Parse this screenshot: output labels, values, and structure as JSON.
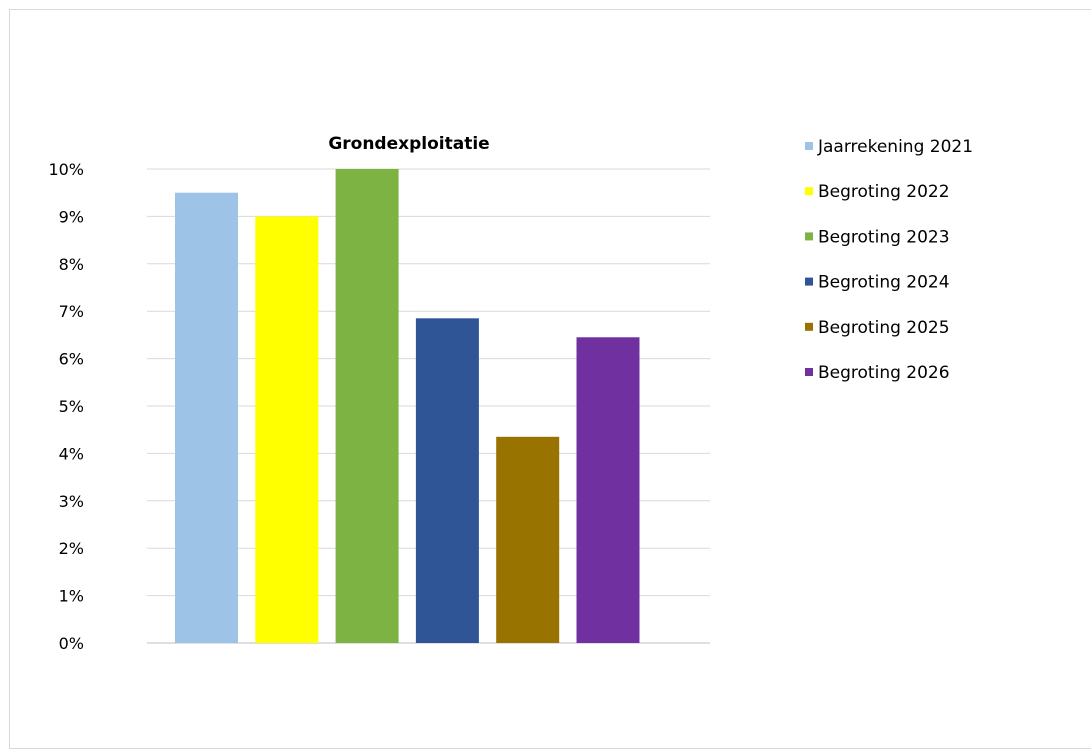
{
  "chart_data": {
    "type": "bar",
    "title": "Grondexploitatie",
    "xlabel": "",
    "ylabel": "",
    "ylim": [
      0,
      10
    ],
    "y_tick_labels": [
      "0%",
      "1%",
      "2%",
      "3%",
      "4%",
      "5%",
      "6%",
      "7%",
      "8%",
      "9%",
      "10%"
    ],
    "grid": true,
    "legend_position": "right",
    "series": [
      {
        "name": "Jaarrekening 2021",
        "value": 9.5,
        "color": "#9dc3e6"
      },
      {
        "name": "Begroting 2022",
        "value": 9.0,
        "color": "#ffff00"
      },
      {
        "name": "Begroting 2023",
        "value": 10.0,
        "color": "#7cb342"
      },
      {
        "name": "Begroting 2024",
        "value": 6.85,
        "color": "#2f5597"
      },
      {
        "name": "Begroting 2025",
        "value": 4.35,
        "color": "#997300"
      },
      {
        "name": "Begroting 2026",
        "value": 6.45,
        "color": "#7030a0"
      }
    ]
  }
}
